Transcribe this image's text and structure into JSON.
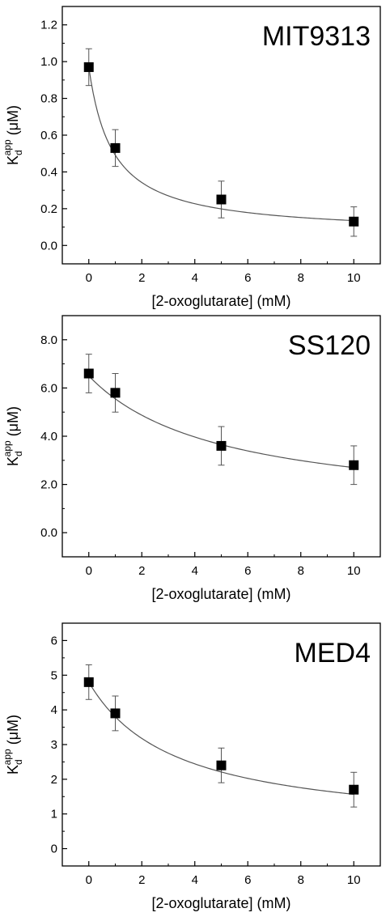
{
  "chart_data": [
    {
      "type": "scatter",
      "title": "MIT9313",
      "xlabel": "[2-oxoglutarate] (mM)",
      "ylabel": {
        "main": "K",
        "sub": "d",
        "sup": "app",
        "unit": " (μM)"
      },
      "xlim": [
        -1,
        11
      ],
      "ylim": [
        -0.1,
        1.3
      ],
      "xticks": [
        0,
        2,
        4,
        6,
        8,
        10
      ],
      "yticks": [
        0.0,
        0.2,
        0.4,
        0.6,
        0.8,
        1.0,
        1.2
      ],
      "ytick_decimals": 1,
      "points": [
        {
          "x": 0,
          "y": 0.97,
          "err": 0.1
        },
        {
          "x": 1,
          "y": 0.53,
          "err": 0.1
        },
        {
          "x": 5,
          "y": 0.25,
          "err": 0.1
        },
        {
          "x": 10,
          "y": 0.13,
          "err": 0.08
        }
      ],
      "fit": {
        "type": "hyperbolic",
        "a": 0.06,
        "b": 0.91,
        "k": 0.9
      },
      "grid": false
    },
    {
      "type": "scatter",
      "title": "SS120",
      "xlabel": "[2-oxoglutarate] (mM)",
      "ylabel": {
        "main": "K",
        "sub": "d",
        "sup": "app",
        "unit": " (μM)"
      },
      "xlim": [
        -1,
        11
      ],
      "ylim": [
        -1.0,
        9.0
      ],
      "xticks": [
        0,
        2,
        4,
        6,
        8,
        10
      ],
      "yticks": [
        0.0,
        2.0,
        4.0,
        6.0,
        8.0
      ],
      "ytick_decimals": 1,
      "points": [
        {
          "x": 0,
          "y": 6.6,
          "err": 0.8
        },
        {
          "x": 1,
          "y": 5.8,
          "err": 0.8
        },
        {
          "x": 5,
          "y": 3.6,
          "err": 0.8
        },
        {
          "x": 10,
          "y": 2.8,
          "err": 0.8
        }
      ],
      "fit": {
        "type": "hyperbolic",
        "a": 0.8,
        "b": 5.7,
        "k": 5.0
      },
      "grid": false
    },
    {
      "type": "scatter",
      "title": "MED4",
      "xlabel": "[2-oxoglutarate] (mM)",
      "ylabel": {
        "main": "K",
        "sub": "d",
        "sup": "app",
        "unit": " (μM)"
      },
      "xlim": [
        -1,
        11
      ],
      "ylim": [
        -0.5,
        6.5
      ],
      "xticks": [
        0,
        2,
        4,
        6,
        8,
        10
      ],
      "yticks": [
        0,
        1,
        2,
        3,
        4,
        5,
        6
      ],
      "ytick_decimals": 0,
      "points": [
        {
          "x": 0,
          "y": 4.8,
          "err": 0.5
        },
        {
          "x": 1,
          "y": 3.9,
          "err": 0.5
        },
        {
          "x": 5,
          "y": 2.4,
          "err": 0.5
        },
        {
          "x": 10,
          "y": 1.7,
          "err": 0.5
        }
      ],
      "fit": {
        "type": "hyperbolic",
        "a": 0.5,
        "b": 4.3,
        "k": 3.3
      },
      "grid": false
    }
  ]
}
